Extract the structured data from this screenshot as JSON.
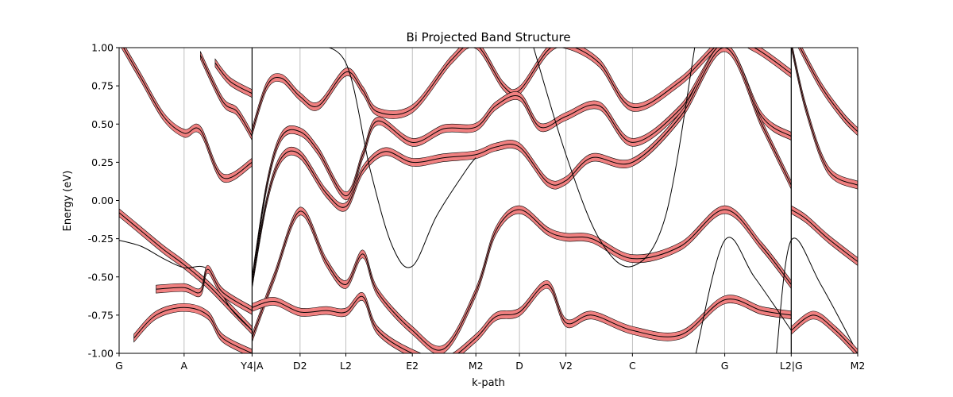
{
  "chart_data": {
    "type": "line",
    "title": "Bi Projected Band Structure",
    "xlabel": "k-path",
    "ylabel": "Energy (eV)",
    "ylim": [
      -1.0,
      1.0
    ],
    "yticks": [
      "1.00",
      "0.75",
      "0.50",
      "0.25",
      "0.00",
      "-0.25",
      "-0.50",
      "-0.75",
      "-1.00"
    ],
    "ytick_values": [
      1.0,
      0.75,
      0.5,
      0.25,
      0.0,
      -0.25,
      -0.5,
      -0.75,
      -1.0
    ],
    "xticks": [
      "G",
      "A",
      "Y4|A",
      "D2",
      "L2",
      "E2",
      "M2",
      "D",
      "V2",
      "C",
      "G",
      "L2|G",
      "M2"
    ],
    "xtick_positions": [
      0,
      0.88,
      1.8,
      2.45,
      3.07,
      3.97,
      4.83,
      5.42,
      6.05,
      6.95,
      8.2,
      9.1,
      10.0
    ],
    "segment_breaks": [
      1.8,
      9.1
    ],
    "grid": "vertical-at-ticks",
    "bands": [
      {
        "projected": true,
        "x": [
          0,
          0.3,
          0.6,
          0.88,
          1.2,
          1.5,
          1.8
        ],
        "y": [
          -0.08,
          -0.2,
          -0.32,
          -0.42,
          -0.55,
          -0.7,
          -0.85
        ]
      },
      {
        "projected": true,
        "x": [
          0,
          0.3,
          0.6,
          0.88,
          1.1,
          1.4,
          1.8
        ],
        "y": [
          1.05,
          0.8,
          0.55,
          0.44,
          0.46,
          0.15,
          0.25
        ]
      },
      {
        "projected": true,
        "x": [
          1.1,
          1.4,
          1.6,
          1.8
        ],
        "y": [
          0.95,
          0.65,
          0.58,
          0.42
        ]
      },
      {
        "projected": true,
        "x": [
          1.3,
          1.5,
          1.8
        ],
        "y": [
          0.9,
          0.78,
          0.7
        ]
      },
      {
        "projected": false,
        "x": [
          0,
          0.3,
          0.6,
          0.88,
          1.2,
          1.5,
          1.8
        ],
        "y": [
          -0.26,
          -0.3,
          -0.38,
          -0.44,
          -0.45,
          -0.7,
          -0.85
        ]
      },
      {
        "projected": true,
        "x": [
          0.2,
          0.5,
          0.88,
          1.2,
          1.4,
          1.8
        ],
        "y": [
          -0.9,
          -0.75,
          -0.7,
          -0.75,
          -0.9,
          -1.0
        ]
      },
      {
        "projected": true,
        "x": [
          0.5,
          0.88,
          1.1,
          1.2,
          1.4,
          1.8
        ],
        "y": [
          -0.58,
          -0.57,
          -0.6,
          -0.45,
          -0.6,
          -0.72
        ]
      },
      {
        "projected": true,
        "x": [
          1.8,
          2.0,
          2.2,
          2.45,
          2.7,
          3.07,
          3.3,
          3.5,
          3.97,
          4.5,
          4.83,
          5.2,
          5.42,
          5.8,
          6.05,
          6.5,
          6.95,
          7.6,
          8.2,
          8.6,
          9.1
        ],
        "y": [
          0.45,
          0.75,
          0.8,
          0.68,
          0.62,
          0.84,
          0.72,
          0.58,
          0.6,
          0.92,
          1.02,
          0.75,
          0.72,
          0.98,
          1.02,
          0.9,
          0.61,
          0.78,
          1.05,
          1.0,
          0.83
        ]
      },
      {
        "projected": true,
        "x": [
          1.8,
          2.0,
          2.2,
          2.45,
          2.7,
          3.07,
          3.3,
          3.5,
          3.97,
          4.4,
          4.83,
          5.1,
          5.42,
          5.7,
          6.05,
          6.5,
          6.95,
          7.6,
          8.2,
          8.7,
          9.1
        ],
        "y": [
          -0.52,
          0.1,
          0.42,
          0.45,
          0.32,
          0.03,
          0.3,
          0.52,
          0.38,
          0.47,
          0.48,
          0.62,
          0.68,
          0.48,
          0.55,
          0.62,
          0.38,
          0.6,
          1.0,
          0.55,
          0.42
        ]
      },
      {
        "projected": true,
        "x": [
          1.8,
          2.0,
          2.2,
          2.45,
          2.8,
          3.07,
          3.3,
          3.6,
          3.97,
          4.4,
          4.83,
          5.1,
          5.42,
          5.8,
          6.05,
          6.4,
          6.95,
          7.6,
          8.2,
          8.7,
          9.1
        ],
        "y": [
          -0.55,
          0.0,
          0.28,
          0.3,
          0.05,
          -0.04,
          0.2,
          0.32,
          0.25,
          0.28,
          0.3,
          0.35,
          0.35,
          0.12,
          0.13,
          0.28,
          0.25,
          0.55,
          1.0,
          0.5,
          0.1
        ]
      },
      {
        "projected": true,
        "x": [
          1.8,
          2.1,
          2.45,
          2.8,
          3.07,
          3.3,
          3.5,
          3.97,
          4.4,
          4.83,
          5.1,
          5.42,
          5.8,
          6.05,
          6.4,
          6.95,
          7.6,
          8.2,
          8.7,
          9.1
        ],
        "y": [
          -0.9,
          -0.5,
          -0.07,
          -0.4,
          -0.55,
          -0.35,
          -0.6,
          -0.85,
          -0.97,
          -0.6,
          -0.2,
          -0.06,
          -0.2,
          -0.24,
          -0.25,
          -0.38,
          -0.3,
          -0.06,
          -0.3,
          -0.55
        ]
      },
      {
        "projected": true,
        "x": [
          1.8,
          2.1,
          2.45,
          2.8,
          3.07,
          3.3,
          3.5,
          3.97,
          4.4,
          4.83,
          5.1,
          5.42,
          5.8,
          6.05,
          6.4,
          6.95,
          7.6,
          8.2,
          8.7,
          9.1
        ],
        "y": [
          -0.7,
          -0.66,
          -0.73,
          -0.72,
          -0.73,
          -0.63,
          -0.85,
          -1.0,
          -1.05,
          -0.9,
          -0.76,
          -0.73,
          -0.55,
          -0.8,
          -0.75,
          -0.85,
          -0.88,
          -0.65,
          -0.72,
          -0.75
        ]
      },
      {
        "projected": false,
        "x": [
          2.6,
          3.07,
          3.4,
          3.7,
          3.97,
          4.3,
          4.7,
          4.83
        ],
        "y": [
          1.02,
          0.9,
          0.2,
          -0.3,
          -0.43,
          -0.1,
          0.2,
          0.28
        ]
      },
      {
        "projected": false,
        "x": [
          5.6,
          6.05,
          6.5,
          6.95,
          7.4,
          7.8
        ],
        "y": [
          1.02,
          0.3,
          -0.25,
          -0.43,
          -0.1,
          1.02
        ]
      },
      {
        "projected": false,
        "x": [
          7.8,
          8.2,
          8.6,
          9.1
        ],
        "y": [
          -1.02,
          -0.26,
          -0.5,
          -0.85
        ]
      },
      {
        "projected": false,
        "x": [
          8.9,
          9.1,
          9.5,
          10.0
        ],
        "y": [
          -1.0,
          -0.26,
          -0.55,
          -1.0
        ]
      },
      {
        "projected": true,
        "x": [
          9.1,
          9.3,
          9.6,
          10.0
        ],
        "y": [
          -0.06,
          -0.12,
          -0.25,
          -0.4
        ]
      },
      {
        "projected": true,
        "x": [
          9.1,
          9.3,
          9.6,
          10.0
        ],
        "y": [
          1.02,
          0.6,
          0.2,
          0.1
        ]
      },
      {
        "projected": true,
        "x": [
          9.2,
          9.5,
          9.8,
          10.0
        ],
        "y": [
          1.02,
          0.75,
          0.55,
          0.45
        ]
      },
      {
        "projected": true,
        "x": [
          9.1,
          9.4,
          9.7,
          10.0
        ],
        "y": [
          -0.85,
          -0.75,
          -0.85,
          -1.0
        ]
      }
    ]
  }
}
